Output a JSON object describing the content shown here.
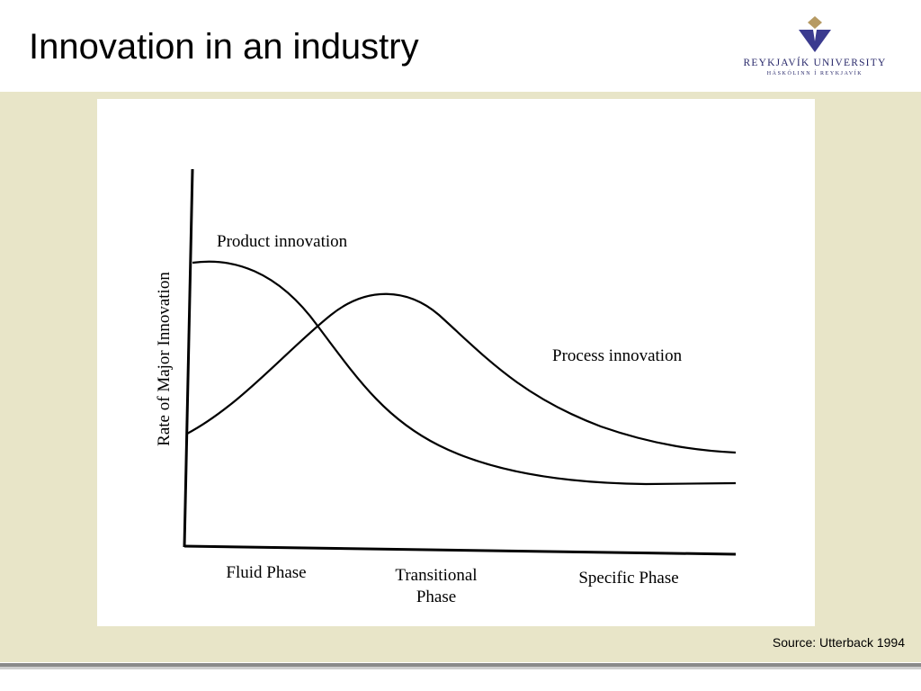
{
  "slide": {
    "title": "Innovation in an industry",
    "source": "Source: Utterback 1994"
  },
  "logo": {
    "name": "REYKJAVÍK UNIVERSITY",
    "tagline": "HÁSKÓLINN Í REYKJAVÍK"
  },
  "diagram": {
    "y_axis_label": "Rate of Major Innovation",
    "curves": [
      {
        "label": "Product innovation"
      },
      {
        "label": "Process innovation"
      }
    ],
    "phases": [
      {
        "line1": "Fluid Phase",
        "line2": ""
      },
      {
        "line1": "Transitional",
        "line2": "Phase"
      },
      {
        "line1": "Specific Phase",
        "line2": ""
      }
    ]
  },
  "colors": {
    "band": "#e8e5c8",
    "logo_blue": "#3b3b8f",
    "logo_gold": "#b69a63"
  }
}
